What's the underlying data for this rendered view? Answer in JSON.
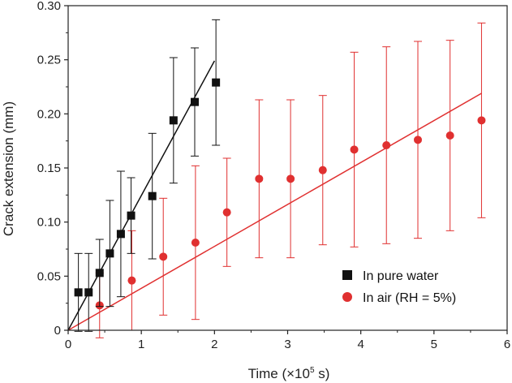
{
  "chart_data": {
    "type": "scatter",
    "xlabel": "Time (×10",
    "xlabel_sup": "5",
    "xlabel_tail": " s)",
    "ylabel": "Crack extension (mm)",
    "xlim": [
      0,
      6
    ],
    "ylim": [
      0,
      0.3
    ],
    "x_ticks": [
      0,
      1,
      2,
      3,
      4,
      5,
      6
    ],
    "y_ticks": [
      0,
      0.05,
      0.1,
      0.15,
      0.2,
      0.25,
      0.3
    ],
    "x_tick_labels": [
      "0",
      "1",
      "2",
      "3",
      "4",
      "5",
      "6"
    ],
    "y_tick_labels": [
      "0",
      "0.05",
      "0.10",
      "0.15",
      "0.20",
      "0.25",
      "0.30"
    ],
    "grid": false,
    "legend_position": "bottom-right",
    "series": [
      {
        "name": "In pure water",
        "marker": "square",
        "color": "#111111",
        "points": [
          {
            "x": 0.14,
            "y": 0.035,
            "err": 0.036
          },
          {
            "x": 0.28,
            "y": 0.035,
            "err": 0.036
          },
          {
            "x": 0.43,
            "y": 0.053,
            "err": 0.031
          },
          {
            "x": 0.57,
            "y": 0.071,
            "err": 0.049
          },
          {
            "x": 0.72,
            "y": 0.089,
            "err": 0.058
          },
          {
            "x": 0.86,
            "y": 0.106,
            "err": 0.035
          },
          {
            "x": 1.15,
            "y": 0.124,
            "err": 0.058
          },
          {
            "x": 1.44,
            "y": 0.194,
            "err": 0.058
          },
          {
            "x": 1.73,
            "y": 0.211,
            "err": 0.05
          },
          {
            "x": 2.02,
            "y": 0.229,
            "err": 0.058
          }
        ],
        "fit": {
          "x": [
            0.0,
            2.0
          ],
          "y": [
            0.0,
            0.249
          ]
        }
      },
      {
        "name": "In air (RH = 5%)",
        "marker": "circle",
        "color": "#e03030",
        "points": [
          {
            "x": 0.43,
            "y": 0.023,
            "err": 0.03
          },
          {
            "x": 0.87,
            "y": 0.046,
            "err": 0.046
          },
          {
            "x": 1.3,
            "y": 0.068,
            "err": 0.054
          },
          {
            "x": 1.74,
            "y": 0.081,
            "err": 0.071
          },
          {
            "x": 2.17,
            "y": 0.109,
            "err": 0.05
          },
          {
            "x": 2.61,
            "y": 0.14,
            "err": 0.073
          },
          {
            "x": 3.04,
            "y": 0.14,
            "err": 0.073
          },
          {
            "x": 3.48,
            "y": 0.148,
            "err": 0.069
          },
          {
            "x": 3.91,
            "y": 0.167,
            "err": 0.09
          },
          {
            "x": 4.35,
            "y": 0.171,
            "err": 0.091
          },
          {
            "x": 4.78,
            "y": 0.176,
            "err": 0.091
          },
          {
            "x": 5.22,
            "y": 0.18,
            "err": 0.088
          },
          {
            "x": 5.65,
            "y": 0.194,
            "err": 0.09
          }
        ],
        "fit": {
          "x": [
            0.0,
            5.65
          ],
          "y": [
            0.0,
            0.219
          ]
        }
      }
    ]
  }
}
